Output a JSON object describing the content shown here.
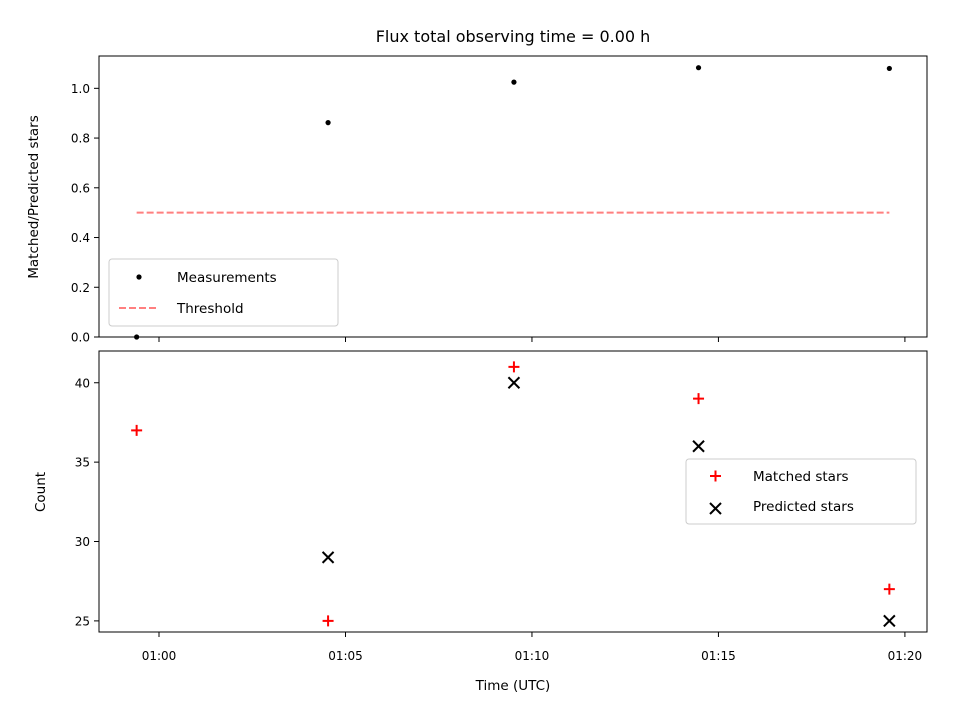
{
  "title": "Flux total observing time = 0.00 h",
  "chart_data": [
    {
      "type": "scatter",
      "ylabel": "Matched/Predicted stars",
      "ylim": [
        0.0,
        1.13
      ],
      "yticks": [
        "0.0",
        "0.2",
        "0.4",
        "0.6",
        "0.8",
        "1.0"
      ],
      "legend_position": "lower-left",
      "series": [
        {
          "name": "Measurements",
          "marker": "dot",
          "color": "#000000",
          "x": [
            "00:59:24",
            "01:04:32",
            "01:09:31",
            "01:14:28",
            "01:19:35"
          ],
          "y": [
            0.0,
            0.862,
            1.025,
            1.083,
            1.08
          ]
        },
        {
          "name": "Threshold",
          "marker": "dashed-line",
          "color": "#ff7f7f",
          "x": [
            "00:59:24",
            "01:19:35"
          ],
          "y": [
            0.5,
            0.5
          ]
        }
      ]
    },
    {
      "type": "scatter",
      "xlabel": "Time (UTC)",
      "ylabel": "Count",
      "ylim": [
        24.3,
        42.0
      ],
      "yticks": [
        "25",
        "30",
        "35",
        "40"
      ],
      "xticks": [
        "01:00",
        "01:05",
        "01:10",
        "01:15",
        "01:20"
      ],
      "legend_position": "center-right",
      "series": [
        {
          "name": "Matched stars",
          "marker": "plus",
          "color": "#ff0000",
          "x": [
            "00:59:24",
            "01:04:32",
            "01:09:31",
            "01:14:28",
            "01:19:35"
          ],
          "y": [
            37,
            25,
            41,
            39,
            27
          ]
        },
        {
          "name": "Predicted stars",
          "marker": "x",
          "color": "#000000",
          "x": [
            "00:59:24",
            "01:04:32",
            "01:09:31",
            "01:14:28",
            "01:19:35"
          ],
          "y": [
            null,
            29,
            40,
            36,
            25
          ]
        }
      ]
    }
  ]
}
